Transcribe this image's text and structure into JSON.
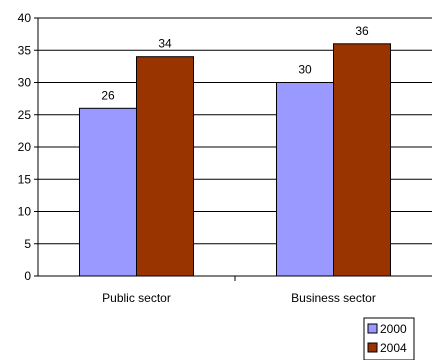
{
  "chart_data": {
    "type": "bar",
    "categories": [
      "Public sector",
      "Business sector"
    ],
    "series": [
      {
        "name": "2000",
        "values": [
          26,
          30
        ],
        "color": "#9999ff",
        "label_color": "#000000"
      },
      {
        "name": "2004",
        "values": [
          34,
          36
        ],
        "color": "#993300",
        "label_color": "#000000"
      }
    ],
    "y_ticks": [
      "0",
      "5",
      "10",
      "15",
      "20",
      "25",
      "30",
      "35",
      "40"
    ],
    "ylim": [
      0,
      40
    ],
    "grid": true,
    "legend_position": "bottom-right",
    "title": "",
    "xlabel": "",
    "ylabel": ""
  }
}
